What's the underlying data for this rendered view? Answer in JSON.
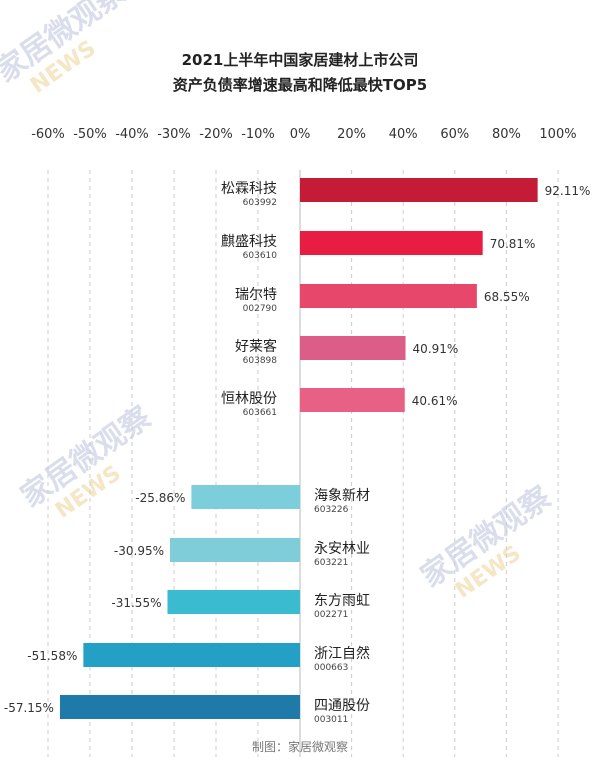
{
  "watermark": {
    "text": "家居微观察",
    "news": "NEWS"
  },
  "chart_data": {
    "type": "bar",
    "orientation": "horizontal",
    "title": [
      "2021上半年中国家居建材上市公司",
      "资产负债率增速最高和降低最快TOP5"
    ],
    "xlim": [
      -60,
      100
    ],
    "xticks": [
      -60,
      -50,
      -40,
      -30,
      -20,
      -10,
      0,
      20,
      40,
      60,
      80,
      100
    ],
    "xtick_labels": [
      "-60%",
      "-50%",
      "-40%",
      "-30%",
      "-20%",
      "-10%",
      "0%",
      "20%",
      "40%",
      "60%",
      "80%",
      "100%"
    ],
    "grid": true,
    "categories": [
      {
        "name": "松霖科技",
        "code": "603992",
        "value": 92.11,
        "label": "92.11%",
        "color": "#c41b36"
      },
      {
        "name": "麒盛科技",
        "code": "603610",
        "value": 70.81,
        "label": "70.81%",
        "color": "#e71e41"
      },
      {
        "name": "瑞尔特",
        "code": "002790",
        "value": 68.55,
        "label": "68.55%",
        "color": "#e7476b"
      },
      {
        "name": "好莱客",
        "code": "603898",
        "value": 40.91,
        "label": "40.91%",
        "color": "#dc5e88"
      },
      {
        "name": "恒林股份",
        "code": "603661",
        "value": 40.61,
        "label": "40.61%",
        "color": "#e96087"
      },
      {
        "name": "海象新材",
        "code": "603226",
        "value": -25.86,
        "label": "-25.86%",
        "color": "#7dcedb"
      },
      {
        "name": "永安林业",
        "code": "603221",
        "value": -30.95,
        "label": "-30.95%",
        "color": "#7ecdd8"
      },
      {
        "name": "东方雨虹",
        "code": "002271",
        "value": -31.55,
        "label": "-31.55%",
        "color": "#3bbbcf"
      },
      {
        "name": "浙江自然",
        "code": "000663",
        "value": -51.58,
        "label": "-51.58%",
        "color": "#24a0c7"
      },
      {
        "name": "四通股份",
        "code": "003011",
        "value": -57.15,
        "label": "-57.15%",
        "color": "#1d7aa9"
      }
    ]
  },
  "footer": "制图：家居微观察"
}
